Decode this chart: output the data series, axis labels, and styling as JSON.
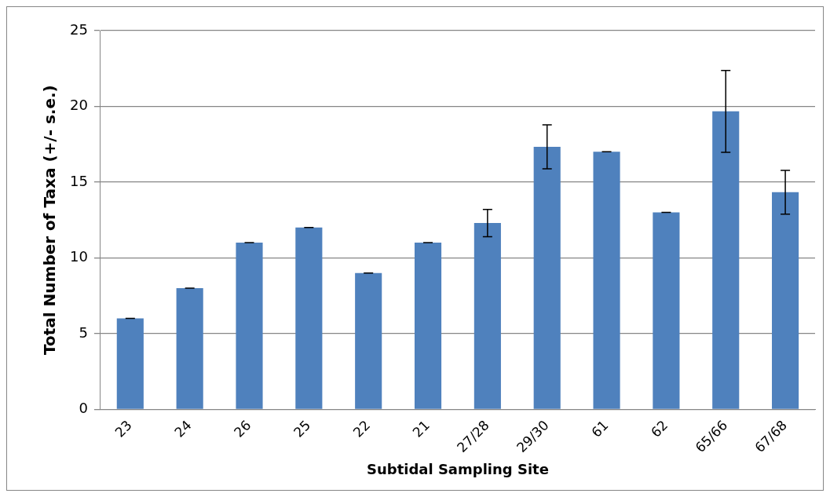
{
  "chart_data": {
    "type": "bar",
    "xlabel": "Subtidal Sampling Site",
    "ylabel": "Total Number of Taxa (+/- s.e.)",
    "categories": [
      "23",
      "24",
      "26",
      "25",
      "22",
      "21",
      "27/28",
      "29/30",
      "61",
      "62",
      "65/66",
      "67/68"
    ],
    "values": [
      6,
      8,
      11,
      12,
      9,
      11,
      12.3,
      17.33,
      17,
      13,
      19.67,
      14.33
    ],
    "errors": [
      0,
      0,
      0,
      0,
      0,
      0,
      0.9,
      1.45,
      0,
      0,
      2.7,
      1.45
    ],
    "color": "#4f81bd",
    "ylim": [
      0,
      25
    ],
    "yticks": [
      0,
      5,
      10,
      15,
      20,
      25
    ],
    "grid": "y",
    "legend": false
  }
}
